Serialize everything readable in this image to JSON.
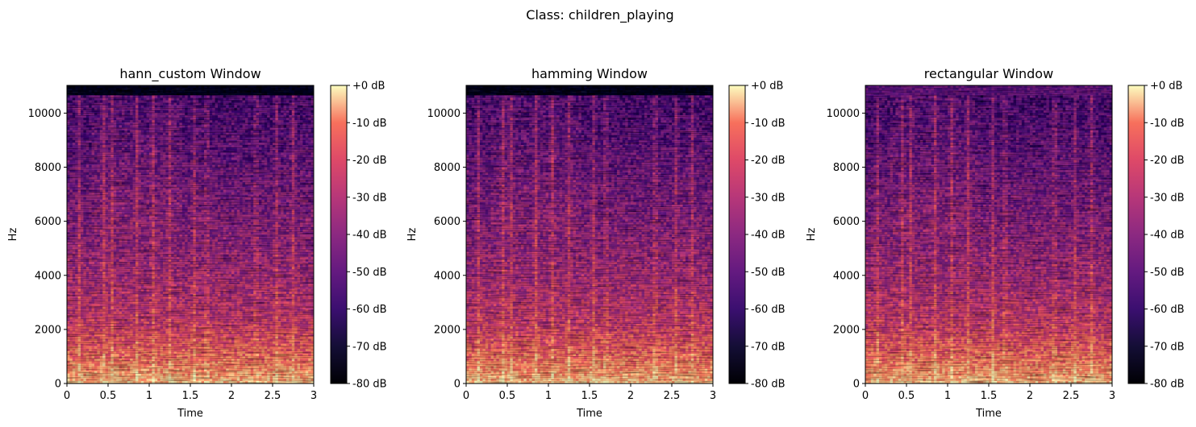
{
  "figure": {
    "suptitle": "Class: children_playing"
  },
  "chart_data": [
    {
      "type": "heatmap",
      "title": "hann_custom Window",
      "xlabel": "Time",
      "ylabel": "Hz",
      "xlim": [
        0,
        3
      ],
      "ylim": [
        0,
        11025
      ],
      "x_ticks": [
        "0",
        "0.5",
        "1",
        "1.5",
        "2",
        "2.5",
        "3"
      ],
      "x_tick_values": [
        0,
        0.5,
        1,
        1.5,
        2,
        2.5,
        3
      ],
      "y_ticks": [
        "0",
        "2000",
        "4000",
        "6000",
        "8000",
        "10000"
      ],
      "y_tick_values": [
        0,
        2000,
        4000,
        6000,
        8000,
        10000
      ],
      "colorbar": {
        "range": [
          -80,
          0
        ],
        "ticks": [
          "+0 dB",
          "-10 dB",
          "-20 dB",
          "-30 dB",
          "-40 dB",
          "-50 dB",
          "-60 dB",
          "-70 dB",
          "-80 dB"
        ],
        "tick_values": [
          0,
          -10,
          -20,
          -30,
          -40,
          -50,
          -60,
          -70,
          -80
        ],
        "colormap": "magma"
      }
    },
    {
      "type": "heatmap",
      "title": "hamming Window",
      "xlabel": "Time",
      "ylabel": "Hz",
      "xlim": [
        0,
        3
      ],
      "ylim": [
        0,
        11025
      ],
      "x_ticks": [
        "0",
        "0.5",
        "1",
        "1.5",
        "2",
        "2.5",
        "3"
      ],
      "x_tick_values": [
        0,
        0.5,
        1,
        1.5,
        2,
        2.5,
        3
      ],
      "y_ticks": [
        "0",
        "2000",
        "4000",
        "6000",
        "8000",
        "10000"
      ],
      "y_tick_values": [
        0,
        2000,
        4000,
        6000,
        8000,
        10000
      ],
      "colorbar": {
        "range": [
          -80,
          0
        ],
        "ticks": [
          "+0 dB",
          "-10 dB",
          "-20 dB",
          "-30 dB",
          "-40 dB",
          "-50 dB",
          "-60 dB",
          "-70 dB",
          "-80 dB"
        ],
        "tick_values": [
          0,
          -10,
          -20,
          -30,
          -40,
          -50,
          -60,
          -70,
          -80
        ],
        "colormap": "magma"
      }
    },
    {
      "type": "heatmap",
      "title": "rectangular Window",
      "xlabel": "Time",
      "ylabel": "Hz",
      "xlim": [
        0,
        3
      ],
      "ylim": [
        0,
        11025
      ],
      "x_ticks": [
        "0",
        "0.5",
        "1",
        "1.5",
        "2",
        "2.5",
        "3"
      ],
      "x_tick_values": [
        0,
        0.5,
        1,
        1.5,
        2,
        2.5,
        3
      ],
      "y_ticks": [
        "0",
        "2000",
        "4000",
        "6000",
        "8000",
        "10000"
      ],
      "y_tick_values": [
        0,
        2000,
        4000,
        6000,
        8000,
        10000
      ],
      "colorbar": {
        "range": [
          -80,
          0
        ],
        "ticks": [
          "+0 dB",
          "-10 dB",
          "-20 dB",
          "-30 dB",
          "-40 dB",
          "-50 dB",
          "-60 dB",
          "-70 dB",
          "-80 dB"
        ],
        "tick_values": [
          0,
          -10,
          -20,
          -30,
          -40,
          -50,
          -60,
          -70,
          -80
        ],
        "colormap": "magma"
      }
    }
  ]
}
